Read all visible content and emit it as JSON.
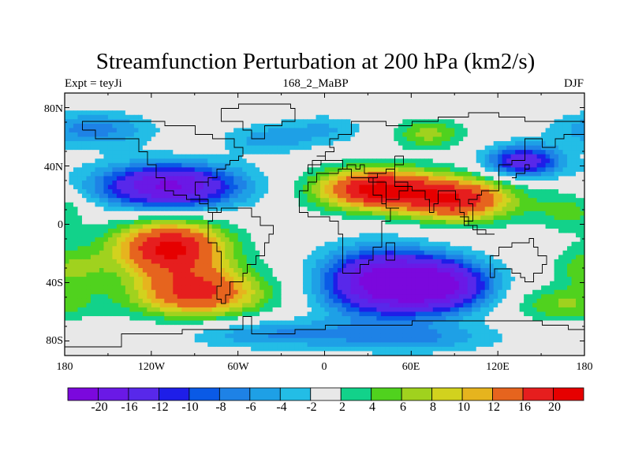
{
  "chart_data": {
    "type": "filled-contour-map",
    "title": "Streamfunction Perturbation at 200 hPa (km2/s)",
    "left_label": "Expt = teyJi",
    "center_label": "168_2_MaBP",
    "right_label": "DJF",
    "x_range": [
      -180,
      180
    ],
    "y_range": [
      -90,
      90
    ],
    "lat_ticks": [
      "80N",
      "40N",
      "0",
      "40S",
      "80S"
    ],
    "lat_tick_values": [
      80,
      40,
      0,
      -40,
      -80
    ],
    "lon_ticks": [
      "180",
      "120W",
      "60W",
      "0",
      "60E",
      "120E",
      "180"
    ],
    "lon_tick_values": [
      -180,
      -120,
      -60,
      0,
      60,
      120,
      180
    ],
    "contour_levels": [
      -20,
      -16,
      -12,
      -10,
      -8,
      -6,
      -4,
      -2,
      2,
      4,
      6,
      8,
      10,
      12,
      16,
      20
    ],
    "colorbar_labels": [
      "-20",
      "-16",
      "-12",
      "-10",
      "-8",
      "-6",
      "-4",
      "-2",
      "2",
      "4",
      "6",
      "8",
      "10",
      "12",
      "16",
      "20"
    ],
    "colors": [
      "#7b08dd",
      "#6a19e6",
      "#5828ea",
      "#1e1ee8",
      "#0a5ae6",
      "#1e82e6",
      "#1ea0e6",
      "#23bde6",
      "#e8e8e8",
      "#12d28a",
      "#50d21e",
      "#a0d21e",
      "#d2d21e",
      "#e6b41e",
      "#e6641e",
      "#e61e1e",
      "#e60000"
    ],
    "features": [
      {
        "name": "n-pacific-low",
        "lon": -108,
        "lat": 26,
        "value": -21
      },
      {
        "name": "s-pacific-high-upper",
        "lon": -107,
        "lat": -16,
        "value": 21
      },
      {
        "name": "s-pacific-high-lower",
        "lon": -88,
        "lat": -47,
        "value": 17
      },
      {
        "name": "eurasian-high-west",
        "lon": 35,
        "lat": 24,
        "value": 21
      },
      {
        "name": "eurasian-high-east",
        "lon": 93,
        "lat": 17,
        "value": 18
      },
      {
        "name": "s-indian-low-west",
        "lon": 40,
        "lat": -40,
        "value": -22
      },
      {
        "name": "s-indian-low-east",
        "lon": 82,
        "lat": -42,
        "value": -18
      },
      {
        "name": "n-pacific-northeast-low",
        "lon": 138,
        "lat": 43,
        "value": -15
      },
      {
        "name": "arctic-siberia-high",
        "lon": 72,
        "lat": 62,
        "value": 7
      }
    ]
  }
}
